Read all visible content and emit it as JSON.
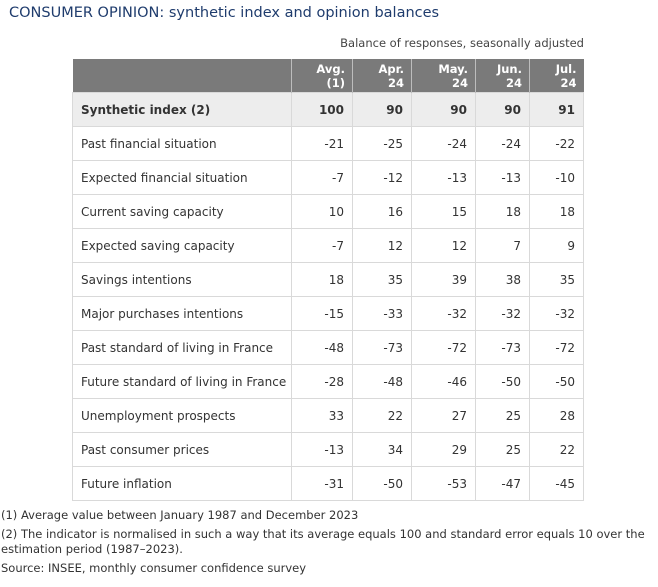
{
  "title": "CONSUMER OPINION: synthetic index and opinion balances",
  "subtitle": "Balance of responses, seasonally adjusted",
  "table": {
    "headers": [
      "",
      "Avg. (1)",
      "Apr. 24",
      "May. 24",
      "Jun. 24",
      "Jul. 24"
    ],
    "rows": [
      {
        "label": "Synthetic index (2)",
        "values": [
          "100",
          "90",
          "90",
          "90",
          "91"
        ],
        "highlight": true
      },
      {
        "label": "Past financial situation",
        "values": [
          "-21",
          "-25",
          "-24",
          "-24",
          "-22"
        ]
      },
      {
        "label": "Expected financial situation",
        "values": [
          "-7",
          "-12",
          "-13",
          "-13",
          "-10"
        ]
      },
      {
        "label": "Current saving capacity",
        "values": [
          "10",
          "16",
          "15",
          "18",
          "18"
        ]
      },
      {
        "label": "Expected saving capacity",
        "values": [
          "-7",
          "12",
          "12",
          "7",
          "9"
        ]
      },
      {
        "label": "Savings intentions",
        "values": [
          "18",
          "35",
          "39",
          "38",
          "35"
        ]
      },
      {
        "label": "Major purchases intentions",
        "values": [
          "-15",
          "-33",
          "-32",
          "-32",
          "-32"
        ]
      },
      {
        "label": "Past standard of living in France",
        "values": [
          "-48",
          "-73",
          "-72",
          "-73",
          "-72"
        ]
      },
      {
        "label": "Future standard of living in France",
        "values": [
          "-28",
          "-48",
          "-46",
          "-50",
          "-50"
        ]
      },
      {
        "label": "Unemployment prospects",
        "values": [
          "33",
          "22",
          "27",
          "25",
          "28"
        ]
      },
      {
        "label": "Past consumer prices",
        "values": [
          "-13",
          "34",
          "29",
          "25",
          "22"
        ]
      },
      {
        "label": "Future inflation",
        "values": [
          "-31",
          "-50",
          "-53",
          "-47",
          "-45"
        ]
      }
    ]
  },
  "notes": {
    "note1": "(1) Average value between January 1987 and December 2023",
    "note2": "(2) The indicator is normalised in such a way that its average equals 100 and standard error equals 10 over the estimation period (1987–2023).",
    "source": "Source: INSEE, monthly consumer confidence survey"
  },
  "colors": {
    "title": "#1f3c6d",
    "header_bg": "#7a7a7a",
    "highlight_row_bg": "#ededed",
    "border": "#d9d9d9"
  }
}
